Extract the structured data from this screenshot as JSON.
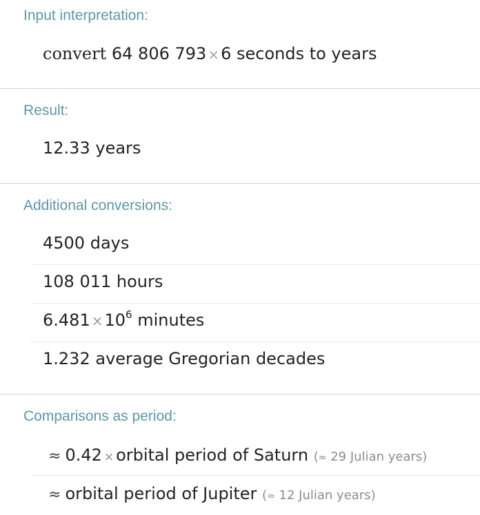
{
  "input_pod": {
    "title": "Input interpretation:",
    "word_convert": "convert",
    "number": "64 806 793",
    "times_symbol": "×",
    "multiplier": "6",
    "rest": "seconds to years"
  },
  "result_pod": {
    "title": "Result:",
    "value": "12.33",
    "unit": "years"
  },
  "additional_pod": {
    "title": "Additional conversions:",
    "rows": [
      {
        "value": "4500",
        "unit": "days"
      },
      {
        "value": "108 011",
        "unit": "hours"
      },
      {
        "mantissa": "6.481",
        "times": "×",
        "base": "10",
        "exponent": "6",
        "unit": "minutes"
      },
      {
        "value": "1.232",
        "unit": "average Gregorian decades"
      }
    ]
  },
  "comparisons_pod": {
    "title": "Comparisons as period:",
    "rows": [
      {
        "approx": "≈",
        "factor": "0.42",
        "times": "×",
        "text": "orbital period of Saturn",
        "note_open": "(",
        "note_approx": "≈",
        "note_value": "29",
        "note_unit": "Julian years",
        "note_close": ")"
      },
      {
        "approx": "≈",
        "text": "orbital period of Jupiter",
        "note_open": "(",
        "note_approx": "≈",
        "note_value": "12",
        "note_unit": "Julian years",
        "note_close": ")"
      }
    ]
  },
  "colors": {
    "pod_title": "#5c96a8",
    "divider": "#d4d4d4",
    "row_separator": "#dceef4",
    "text": "#222222"
  }
}
